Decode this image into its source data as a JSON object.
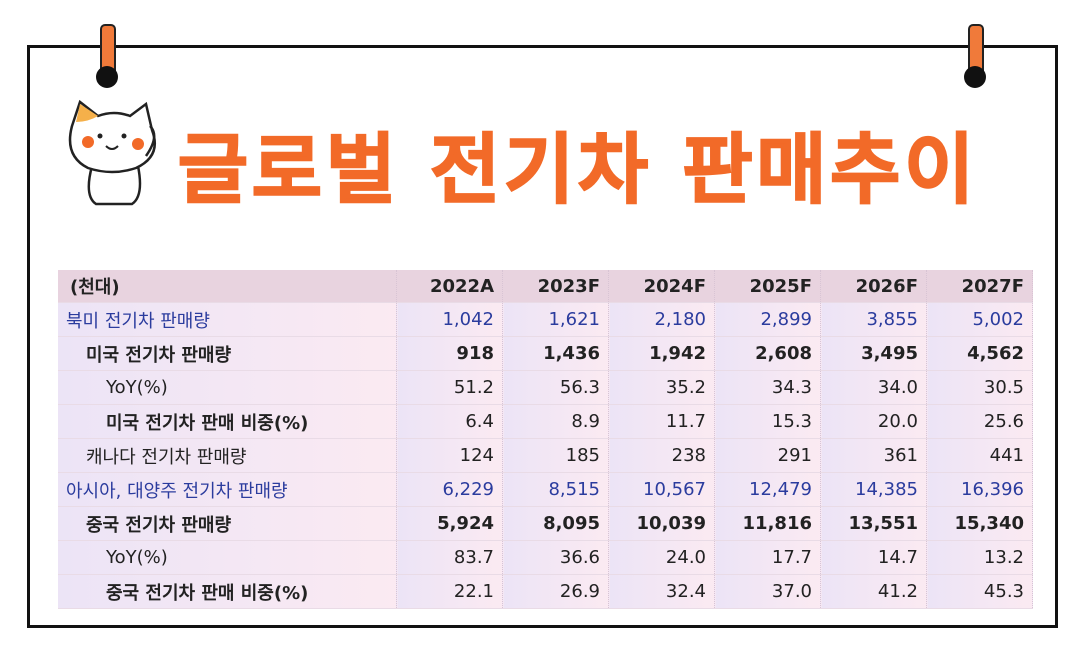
{
  "header": {
    "title": "글로벌 전기차 판매추이"
  },
  "table": {
    "columns": [
      "(천대)",
      "2022A",
      "2023F",
      "2024F",
      "2025F",
      "2026F",
      "2027F"
    ],
    "rows": [
      [
        "북미 전기차 판매량",
        "1,042",
        "1,621",
        "2,180",
        "2,899",
        "3,855",
        "5,002"
      ],
      [
        "미국 전기차 판매량",
        "918",
        "1,436",
        "1,942",
        "2,608",
        "3,495",
        "4,562"
      ],
      [
        "YoY(%)",
        "51.2",
        "56.3",
        "35.2",
        "34.3",
        "34.0",
        "30.5"
      ],
      [
        "미국 전기차 판매 비중(%)",
        "6.4",
        "8.9",
        "11.7",
        "15.3",
        "20.0",
        "25.6"
      ],
      [
        "캐나다 전기차 판매량",
        "124",
        "185",
        "238",
        "291",
        "361",
        "441"
      ],
      [
        "아시아, 대양주 전기차 판매량",
        "6,229",
        "8,515",
        "10,567",
        "12,479",
        "14,385",
        "16,396"
      ],
      [
        "중국 전기차 판매량",
        "5,924",
        "8,095",
        "10,039",
        "11,816",
        "13,551",
        "15,340"
      ],
      [
        "YoY(%)",
        "83.7",
        "36.6",
        "24.0",
        "17.7",
        "14.7",
        "13.2"
      ],
      [
        "중국 전기차 판매 비중(%)",
        "22.1",
        "26.9",
        "32.4",
        "37.0",
        "41.2",
        "45.3"
      ]
    ]
  }
}
